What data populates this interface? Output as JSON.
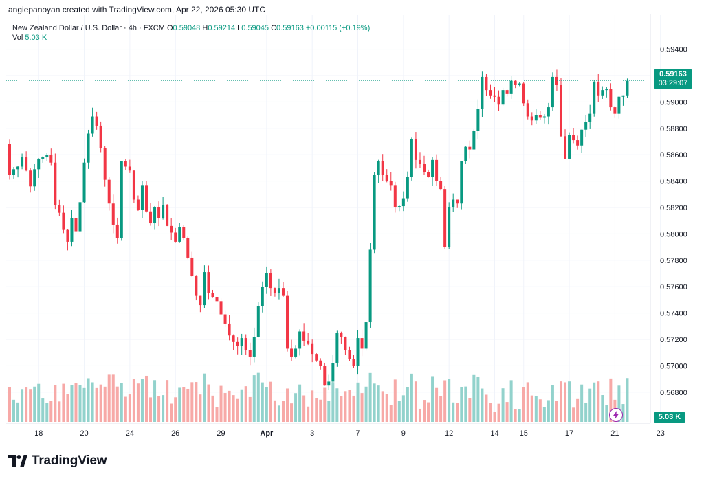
{
  "caption": "angiepanoyan created with TradingView.com, Apr 22, 2026 05:30 UTC",
  "legend": {
    "symbol": "New Zealand Dollar / U.S. Dollar · 4h · FXCM",
    "open_label": "O",
    "open": "0.59048",
    "high_label": "H",
    "high": "0.59214",
    "low_label": "L",
    "low": "0.59045",
    "close_label": "C",
    "close": "0.59163",
    "change": "+0.00115 (+0.19%)",
    "vol_label": "Vol",
    "vol_value": "5.03 K"
  },
  "last_price": {
    "price": "0.59163",
    "countdown": "03:29:07"
  },
  "volume_tag": "5.03 K",
  "brand": {
    "name": "TradingView"
  },
  "colors": {
    "up": "#089981",
    "down": "#F23645",
    "up_volume": "#92D2CC",
    "down_volume": "#F7A9A7",
    "grid": "#F0F3FA",
    "alert": "#9C27B0"
  },
  "chart_data": {
    "type": "candlestick",
    "y_axis": {
      "ticks": [
        "0.59400",
        "0.59200",
        "0.59000",
        "0.58800",
        "0.58600",
        "0.58400",
        "0.58200",
        "0.58000",
        "0.57800",
        "0.57600",
        "0.57400",
        "0.57200",
        "0.57000",
        "0.56800"
      ],
      "range": [
        0.567,
        0.5945
      ]
    },
    "x_axis": {
      "ticks": [
        {
          "label": "18",
          "bar": 7
        },
        {
          "label": "20",
          "bar": 18
        },
        {
          "label": "24",
          "bar": 29
        },
        {
          "label": "26",
          "bar": 40
        },
        {
          "label": "29",
          "bar": 51
        },
        {
          "label": "Apr",
          "bar": 62
        },
        {
          "label": "3",
          "bar": 73
        },
        {
          "label": "7",
          "bar": 84
        },
        {
          "label": "9",
          "bar": 95
        },
        {
          "label": "12",
          "bar": 106
        },
        {
          "label": "14",
          "bar": 117
        },
        {
          "label": "15",
          "bar": 124
        },
        {
          "label": "17",
          "bar": 135
        },
        {
          "label": "21",
          "bar": 146
        },
        {
          "label": "23",
          "bar": 157
        }
      ]
    },
    "closes": [
      0.5845,
      0.5849,
      0.5851,
      0.5858,
      0.5848,
      0.5836,
      0.5849,
      0.5857,
      0.5858,
      0.586,
      0.5854,
      0.5822,
      0.5816,
      0.5803,
      0.5794,
      0.5812,
      0.5802,
      0.5824,
      0.5854,
      0.5876,
      0.5889,
      0.5882,
      0.5865,
      0.5841,
      0.5823,
      0.5807,
      0.5797,
      0.5855,
      0.5851,
      0.5848,
      0.5826,
      0.5818,
      0.5837,
      0.5817,
      0.5808,
      0.582,
      0.5812,
      0.5822,
      0.5806,
      0.5801,
      0.5794,
      0.5805,
      0.5797,
      0.5782,
      0.5768,
      0.5753,
      0.5746,
      0.5771,
      0.5755,
      0.5752,
      0.5749,
      0.5739,
      0.5732,
      0.5723,
      0.5718,
      0.5715,
      0.5721,
      0.5712,
      0.5707,
      0.5722,
      0.5745,
      0.576,
      0.577,
      0.5759,
      0.5755,
      0.5759,
      0.5753,
      0.5713,
      0.5707,
      0.5713,
      0.5726,
      0.5719,
      0.5717,
      0.5709,
      0.5704,
      0.57,
      0.5685,
      0.5688,
      0.5702,
      0.5725,
      0.5722,
      0.5712,
      0.5705,
      0.57,
      0.5721,
      0.5713,
      0.5733,
      0.5788,
      0.5845,
      0.5855,
      0.5845,
      0.584,
      0.5837,
      0.582,
      0.5821,
      0.5827,
      0.5843,
      0.5872,
      0.5856,
      0.5853,
      0.5847,
      0.5843,
      0.5856,
      0.584,
      0.5834,
      0.579,
      0.582,
      0.5826,
      0.5823,
      0.5855,
      0.5866,
      0.5864,
      0.5878,
      0.5895,
      0.5919,
      0.5909,
      0.5905,
      0.5904,
      0.5898,
      0.5909,
      0.5906,
      0.5916,
      0.5913,
      0.5914,
      0.5899,
      0.5889,
      0.5886,
      0.589,
      0.5888,
      0.5889,
      0.5896,
      0.5919,
      0.5913,
      0.5874,
      0.5857,
      0.5875,
      0.5871,
      0.5867,
      0.5879,
      0.5885,
      0.5891,
      0.5915,
      0.5905,
      0.5909,
      0.591,
      0.5896,
      0.5891,
      0.5904,
      0.5905,
      0.5916
    ]
  }
}
